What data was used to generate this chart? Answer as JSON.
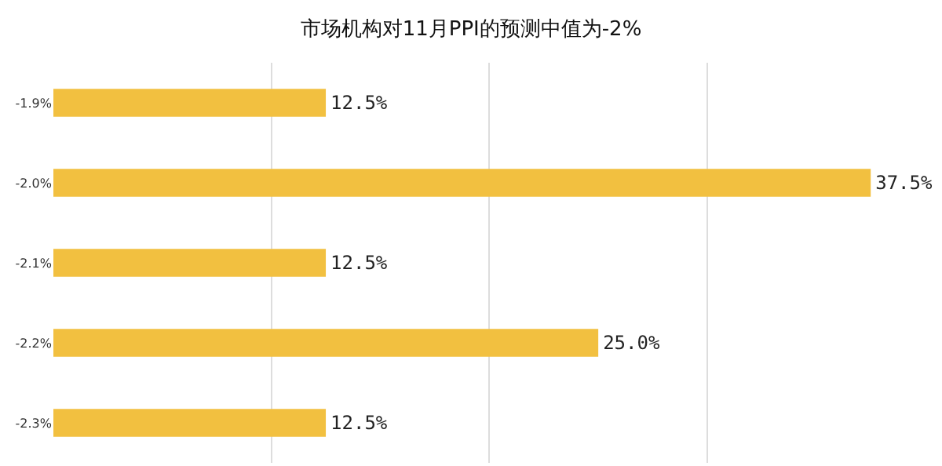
{
  "chart_data": {
    "type": "bar",
    "orientation": "horizontal",
    "title": "市场机构对11月PPI的预测中值为-2%",
    "categories": [
      "-1.9%",
      "-2.0%",
      "-2.1%",
      "-2.2%",
      "-2.3%"
    ],
    "values": [
      12.5,
      37.5,
      12.5,
      25.0,
      12.5
    ],
    "value_labels": [
      "12.5%",
      "37.5%",
      "12.5%",
      "25.0%",
      "12.5%"
    ],
    "color": "#f2c040",
    "tick_labels": "y",
    "grid": "x",
    "legend": false
  }
}
